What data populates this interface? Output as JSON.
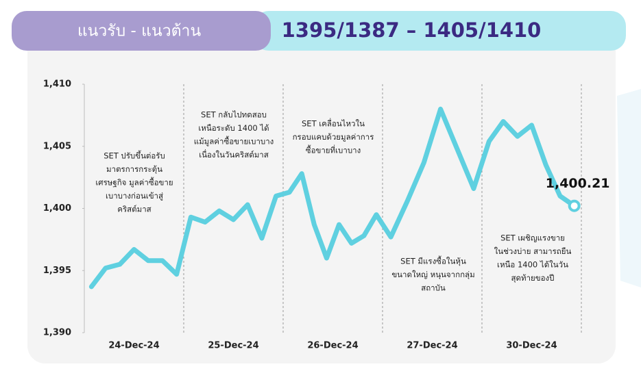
{
  "header": {
    "label": "แนวรับ - แนวต้าน",
    "levels": "1395/1387 – 1405/1410"
  },
  "chart_data": {
    "type": "line",
    "categories": [
      "24-Dec-24",
      "25-Dec-24",
      "26-Dec-24",
      "27-Dec-24",
      "30-Dec-24"
    ],
    "values": [
      [
        1393.7,
        1395.2,
        1395.5,
        1396.7,
        1395.8,
        1395.8,
        1394.7
      ],
      [
        1399.3,
        1398.9,
        1399.8,
        1399.1,
        1400.3,
        1397.6,
        1401.0
      ],
      [
        1401.3,
        1402.8,
        1398.7,
        1396.0,
        1398.7,
        1397.2,
        1397.8,
        1399.5
      ],
      [
        1397.7,
        1400.6,
        1403.7,
        1408.0,
        1404.8,
        1401.6
      ],
      [
        1405.4,
        1407.0,
        1405.8,
        1406.7,
        1403.5,
        1401.0,
        1400.21
      ]
    ],
    "value_labels": [
      [
        null,
        null,
        null,
        null,
        null,
        null,
        null
      ],
      [
        null,
        null,
        null,
        null,
        null,
        null,
        null
      ],
      [
        null,
        null,
        null,
        null,
        null,
        null,
        null,
        null
      ],
      [
        null,
        null,
        null,
        null,
        null,
        null
      ],
      [
        null,
        null,
        null,
        null,
        null,
        null,
        "1,400.21"
      ]
    ],
    "color": "#5fd0e0",
    "ylim": [
      1390,
      1410
    ],
    "yticks": [
      {
        "value": 1390,
        "label": "1,390"
      },
      {
        "value": 1395,
        "label": "1,395"
      },
      {
        "value": 1400,
        "label": "1,400"
      },
      {
        "value": 1405,
        "label": "1,405"
      },
      {
        "value": 1410,
        "label": "1,410"
      }
    ],
    "annotations": [
      [
        "SET ปรับขึ้นต่อรับ",
        "มาตรการกระตุ้น",
        "เศรษฐกิจ มูลค่าซื้อขาย",
        "เบาบางก่อนเข้าสู่",
        "คริสต์มาส"
      ],
      [
        "SET กลับไปทดสอบ",
        "เหนือระดับ 1400 ได้",
        "แม้มูลค่าซื้อขายเบาบาง",
        "เนื่องในวันคริสต์มาส"
      ],
      [
        "SET เคลื่อนไหวใน",
        "กรอบแคบด้วยมูลค่าการ",
        "ซื้อขายที่เบาบาง"
      ],
      [
        "SET มีแรงซื้อในหุ้น",
        "ขนาดใหญ่ หนุนจากกลุ่ม",
        "สถาบัน"
      ],
      [
        "SET เผชิญแรงขาย",
        "ในช่วงบ่าย สามารถยืน",
        "เหนือ 1400 ได้ในวัน",
        "สุดท้ายของปี"
      ]
    ]
  }
}
